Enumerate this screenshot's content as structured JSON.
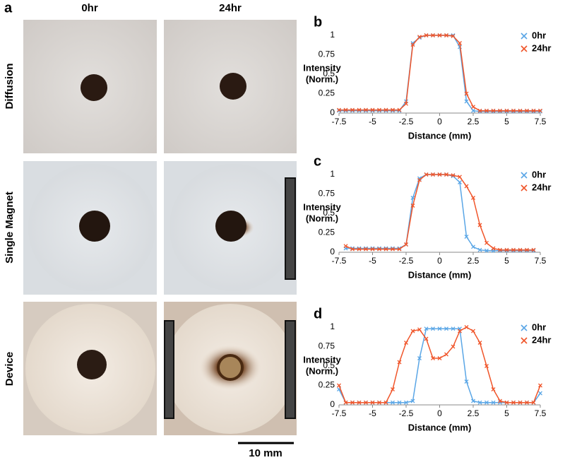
{
  "panel_a": {
    "label": "a",
    "columns": [
      "0hr",
      "24hr"
    ],
    "rows": [
      "Diffusion",
      "Single Magnet",
      "Device"
    ],
    "scale_bar": "10 mm"
  },
  "chart_data": [
    {
      "type": "line",
      "label": "b",
      "x_label": "Distance (mm)",
      "y_label": [
        "Intensity",
        "(Norm.)"
      ],
      "x": [
        -7.5,
        -7,
        -6.5,
        -6,
        -5.5,
        -5,
        -4.5,
        -4,
        -3.5,
        -3,
        -2.5,
        -2,
        -1.5,
        -1,
        -0.5,
        0,
        0.5,
        1,
        1.5,
        2,
        2.5,
        3,
        3.5,
        4,
        4.5,
        5,
        5.5,
        6,
        6.5,
        7,
        7.5
      ],
      "series": [
        {
          "name": "0hr",
          "color": "#5aa6e6",
          "values": [
            0.03,
            0.03,
            0.03,
            0.03,
            0.03,
            0.03,
            0.03,
            0.03,
            0.03,
            0.03,
            0.15,
            0.9,
            0.97,
            1,
            1,
            1,
            1,
            1,
            0.85,
            0.15,
            0.03,
            0.02,
            0.02,
            0.02,
            0.02,
            0.02,
            0.02,
            0.02,
            0.02,
            0.02,
            0.02
          ]
        },
        {
          "name": "24hr",
          "color": "#f0552a",
          "values": [
            0.04,
            0.04,
            0.04,
            0.04,
            0.04,
            0.04,
            0.04,
            0.04,
            0.04,
            0.04,
            0.12,
            0.88,
            0.98,
            1,
            1,
            1,
            1,
            0.99,
            0.9,
            0.25,
            0.08,
            0.03,
            0.03,
            0.03,
            0.03,
            0.03,
            0.03,
            0.03,
            0.03,
            0.03,
            0.03
          ]
        }
      ],
      "xlim": [
        -7.5,
        7.5
      ],
      "xticks": [
        -7.5,
        -5,
        -2.5,
        0,
        2.5,
        5,
        7.5
      ],
      "ylim": [
        0,
        1
      ],
      "yticks": [
        0,
        0.25,
        0.5,
        0.75,
        1
      ],
      "legend": "top-right"
    },
    {
      "type": "line",
      "label": "c",
      "x_label": "Distance (mm)",
      "y_label": [
        "Intensity",
        "(Norm.)"
      ],
      "x": [
        -7,
        -6.5,
        -6,
        -5.5,
        -5,
        -4.5,
        -4,
        -3.5,
        -3,
        -2.5,
        -2,
        -1.5,
        -1,
        -0.5,
        0,
        0.5,
        1,
        1.5,
        2,
        2.5,
        3,
        3.5,
        4,
        4.5,
        5,
        5.5,
        6,
        6.5,
        7
      ],
      "series": [
        {
          "name": "0hr",
          "color": "#5aa6e6",
          "values": [
            0.05,
            0.05,
            0.05,
            0.05,
            0.05,
            0.05,
            0.05,
            0.05,
            0.05,
            0.1,
            0.7,
            0.95,
            1,
            1,
            1,
            1,
            0.98,
            0.9,
            0.2,
            0.07,
            0.03,
            0.02,
            0.02,
            0.02,
            0.02,
            0.02,
            0.02,
            0.02,
            0.02
          ]
        },
        {
          "name": "24hr",
          "color": "#f0552a",
          "values": [
            0.08,
            0.04,
            0.04,
            0.04,
            0.04,
            0.04,
            0.04,
            0.04,
            0.04,
            0.1,
            0.6,
            0.93,
            1,
            1,
            1,
            1,
            0.99,
            0.97,
            0.85,
            0.7,
            0.35,
            0.12,
            0.05,
            0.03,
            0.03,
            0.03,
            0.03,
            0.03,
            0.03
          ]
        }
      ],
      "xlim": [
        -7.5,
        7.5
      ],
      "xticks": [
        -7.5,
        -5,
        -2.5,
        0,
        2.5,
        5,
        7.5
      ],
      "ylim": [
        0,
        1
      ],
      "yticks": [
        0,
        0.25,
        0.5,
        0.75,
        1
      ],
      "legend": "top-right"
    },
    {
      "type": "line",
      "label": "d",
      "x_label": "Distance (mm)",
      "y_label": [
        "Intensity",
        "(Norm.)"
      ],
      "x": [
        -7.5,
        -7,
        -6.5,
        -6,
        -5.5,
        -5,
        -4.5,
        -4,
        -3.5,
        -3,
        -2.5,
        -2,
        -1.5,
        -1,
        -0.5,
        0,
        0.5,
        1,
        1.5,
        2,
        2.5,
        3,
        3.5,
        4,
        4.5,
        5,
        5.5,
        6,
        6.5,
        7,
        7.5
      ],
      "series": [
        {
          "name": "0hr",
          "color": "#5aa6e6",
          "values": [
            0.2,
            0.03,
            0.03,
            0.03,
            0.03,
            0.03,
            0.03,
            0.03,
            0.03,
            0.03,
            0.03,
            0.05,
            0.6,
            0.98,
            0.98,
            0.98,
            0.98,
            0.98,
            0.98,
            0.3,
            0.05,
            0.03,
            0.03,
            0.03,
            0.03,
            0.03,
            0.03,
            0.03,
            0.03,
            0.03,
            0.15
          ]
        },
        {
          "name": "24hr",
          "color": "#f0552a",
          "values": [
            0.25,
            0.03,
            0.03,
            0.03,
            0.03,
            0.03,
            0.03,
            0.03,
            0.2,
            0.55,
            0.8,
            0.95,
            0.97,
            0.85,
            0.6,
            0.6,
            0.65,
            0.75,
            0.95,
            1,
            0.95,
            0.8,
            0.5,
            0.2,
            0.05,
            0.03,
            0.03,
            0.03,
            0.03,
            0.03,
            0.25
          ]
        }
      ],
      "xlim": [
        -7.5,
        7.5
      ],
      "xticks": [
        -7.5,
        -5,
        -2.5,
        0,
        2.5,
        5,
        7.5
      ],
      "ylim": [
        0,
        1
      ],
      "yticks": [
        0,
        0.25,
        0.5,
        0.75,
        1
      ],
      "legend": "top-right"
    }
  ]
}
